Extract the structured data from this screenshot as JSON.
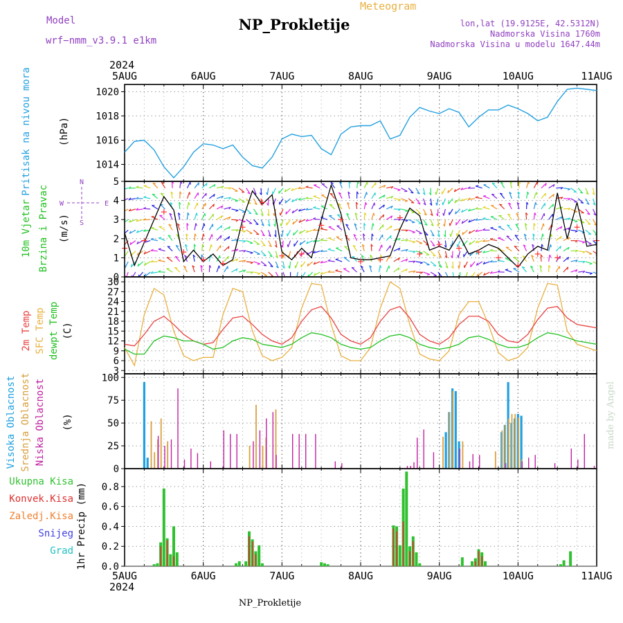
{
  "header": {
    "model_label": "Model",
    "model_name": "wrf−nmm_v3.9.1  e1km",
    "title": "NP_Prokletije",
    "product": "Meteogram",
    "lonlat": "lon,lat (19.9125E, 42.5312N)",
    "altitude": "Nadmorska Visina 1760m",
    "model_altitude": "Nadmorska Visina u modelu 1647.44m",
    "year_top": "2024",
    "year_bottom": "2024",
    "footer": "NP_Prokletije",
    "credit": "made by Angel"
  },
  "colors": {
    "pressure": "#22a0e0",
    "temp2m": "#e84040",
    "sfc": "#e8b040",
    "dew": "#20c020",
    "high_cloud": "#20a0e0",
    "mid_cloud": "#d8a040",
    "low_cloud": "#c020a0",
    "total_precip": "#30c030",
    "conv_precip": "#e03030",
    "frozen_precip": "#f08030",
    "snow": "#4040e0",
    "hail": "#20c0c0",
    "gust": "#ff3030",
    "label_violet": "#9040c0",
    "credit_grey": "#c8d8c8"
  },
  "chart_data": [
    {
      "id": "pressure",
      "type": "line",
      "ylabel": "Pritisak na nivou mora",
      "units": "(hPa)",
      "ylim": [
        1012.6,
        1020.6
      ],
      "yticks": [
        1014,
        1016,
        1018,
        1020
      ],
      "x_day_labels": [
        "5AUG",
        "6AUG",
        "7AUG",
        "8AUG",
        "9AUG",
        "10AUG",
        "11AUG"
      ],
      "x_start": "2024-08-05 00:00",
      "x_end": "2024-08-11 00:00",
      "grid": true,
      "series": [
        {
          "name": "Pritisak na nivou mora",
          "x_hours": [
            0,
            3,
            6,
            9,
            12,
            15,
            18,
            21,
            24,
            27,
            30,
            33,
            36,
            39,
            42,
            45,
            48,
            51,
            54,
            57,
            60,
            63,
            66,
            69,
            72,
            75,
            78,
            81,
            84,
            87,
            90,
            93,
            96,
            99,
            102,
            105,
            108,
            111,
            114,
            117,
            120,
            123,
            126,
            129,
            132,
            135,
            138,
            141,
            144
          ],
          "values": [
            1015.0,
            1015.9,
            1016.0,
            1015.2,
            1013.8,
            1012.9,
            1013.8,
            1015.0,
            1015.7,
            1015.6,
            1015.3,
            1015.6,
            1014.6,
            1013.9,
            1013.7,
            1014.6,
            1016.1,
            1016.5,
            1016.3,
            1016.4,
            1015.3,
            1014.8,
            1016.5,
            1017.1,
            1017.2,
            1017.2,
            1017.6,
            1016.1,
            1016.4,
            1017.9,
            1018.7,
            1018.4,
            1018.2,
            1018.6,
            1018.3,
            1017.1,
            1017.9,
            1018.5,
            1018.5,
            1018.9,
            1018.6,
            1018.2,
            1017.6,
            1017.9,
            1019.2,
            1020.2,
            1020.3,
            1020.2,
            1020.1
          ]
        }
      ]
    },
    {
      "id": "wind",
      "type": "line",
      "ylabel_1": "10m Vjetar",
      "ylabel_2": "Brzina i Pravac",
      "units": "(m/s)",
      "compass": {
        "n": "N",
        "s": "S",
        "w": "W",
        "e": "E"
      },
      "ylim": [
        0,
        5
      ],
      "yticks": [
        0,
        1,
        2,
        3,
        4,
        5
      ],
      "grid": true,
      "series": [
        {
          "name": "speed",
          "x_hours": [
            0,
            3,
            6,
            9,
            12,
            15,
            18,
            21,
            24,
            27,
            30,
            33,
            36,
            39,
            42,
            45,
            48,
            51,
            54,
            57,
            60,
            63,
            66,
            69,
            72,
            75,
            78,
            81,
            84,
            87,
            90,
            93,
            96,
            99,
            102,
            105,
            108,
            111,
            114,
            117,
            120,
            123,
            126,
            129,
            132,
            135,
            138,
            141,
            144
          ],
          "values": [
            2.3,
            0.6,
            1.8,
            3.0,
            4.2,
            3.5,
            0.8,
            1.4,
            0.8,
            1.2,
            0.6,
            0.9,
            3.0,
            4.5,
            3.8,
            4.3,
            1.3,
            0.9,
            1.5,
            1.0,
            3.0,
            4.8,
            3.3,
            1.0,
            0.9,
            0.9,
            1.0,
            1.1,
            2.5,
            3.6,
            3.2,
            1.4,
            1.6,
            1.4,
            2.2,
            1.2,
            1.4,
            1.7,
            1.5,
            1.0,
            0.5,
            1.2,
            1.6,
            1.4,
            4.4,
            2.0,
            3.9,
            1.6,
            1.7
          ]
        },
        {
          "name": "gust",
          "x_hours": [
            0,
            6,
            12,
            18,
            24,
            30,
            36,
            42,
            48,
            54,
            60,
            66,
            72,
            78,
            84,
            90,
            96,
            102,
            108,
            114,
            120,
            126,
            132,
            138,
            144
          ],
          "values": [
            1.5,
            1.9,
            3.4,
            1.3,
            0.9,
            0.7,
            2.6,
            3.9,
            1.1,
            1.2,
            2.7,
            3.0,
            0.8,
            0.9,
            3.1,
            1.2,
            1.7,
            1.5,
            1.3,
            1.0,
            0.6,
            1.2,
            1.0,
            2.6,
            1.9
          ]
        }
      ],
      "direction_deg": [
        200,
        220,
        260,
        300,
        330,
        350,
        20,
        60,
        90,
        120,
        150,
        180,
        210,
        240,
        270,
        300,
        330,
        10,
        50,
        80,
        110,
        140,
        170,
        200,
        230,
        260,
        290,
        320,
        350,
        30,
        70,
        100
      ]
    },
    {
      "id": "temperature",
      "type": "line",
      "ylabel_1": "2m Temp",
      "ylabel_2": "SFC Temp",
      "ylabel_3": "dewpt Temp",
      "units": "(C)",
      "ylim": [
        2,
        31.5
      ],
      "yticks": [
        3,
        6,
        9,
        12,
        15,
        18,
        21,
        24,
        27,
        30
      ],
      "grid": true,
      "series": [
        {
          "name": "2m Temp",
          "x_hours": [
            0,
            3,
            6,
            9,
            12,
            15,
            18,
            21,
            24,
            27,
            30,
            33,
            36,
            39,
            42,
            45,
            48,
            51,
            54,
            57,
            60,
            63,
            66,
            69,
            72,
            75,
            78,
            81,
            84,
            87,
            90,
            93,
            96,
            99,
            102,
            105,
            108,
            111,
            114,
            117,
            120,
            123,
            126,
            129,
            132,
            135,
            138,
            141,
            144
          ],
          "values": [
            11,
            10.5,
            14,
            18,
            19.5,
            17,
            14,
            12,
            11,
            11.5,
            15.5,
            19,
            19.5,
            17,
            14,
            12,
            11,
            13,
            18,
            21.5,
            22.5,
            19,
            14,
            12,
            11,
            13,
            18,
            21.5,
            22.5,
            19,
            14,
            12,
            11,
            13,
            17,
            19.5,
            19.5,
            18,
            14,
            12,
            11.5,
            14,
            18.5,
            22,
            22.5,
            19,
            17,
            16.5,
            16
          ]
        },
        {
          "name": "SFC Temp",
          "x_hours": [
            0,
            3,
            6,
            9,
            12,
            15,
            18,
            21,
            24,
            27,
            30,
            33,
            36,
            39,
            42,
            45,
            48,
            51,
            54,
            57,
            60,
            63,
            66,
            69,
            72,
            75,
            78,
            81,
            84,
            87,
            90,
            93,
            96,
            99,
            102,
            105,
            108,
            111,
            114,
            117,
            120,
            123,
            126,
            129,
            132,
            135,
            138,
            141,
            144
          ],
          "values": [
            10,
            4.5,
            20,
            28,
            26,
            15,
            7.5,
            6,
            7,
            7,
            20,
            28,
            27,
            15,
            7.5,
            6,
            7,
            10,
            22,
            29.5,
            29,
            17,
            7.5,
            6,
            6,
            10,
            22,
            30,
            28,
            17,
            8,
            6.5,
            6,
            9,
            20,
            24,
            24,
            17,
            8.5,
            6,
            7,
            10,
            22,
            29.5,
            29,
            15,
            11,
            10,
            9
          ]
        },
        {
          "name": "dewpt Temp",
          "x_hours": [
            0,
            3,
            6,
            9,
            12,
            15,
            18,
            21,
            24,
            27,
            30,
            33,
            36,
            39,
            42,
            45,
            48,
            51,
            54,
            57,
            60,
            63,
            66,
            69,
            72,
            75,
            78,
            81,
            84,
            87,
            90,
            93,
            96,
            99,
            102,
            105,
            108,
            111,
            114,
            117,
            120,
            123,
            126,
            129,
            132,
            135,
            138,
            141,
            144
          ],
          "values": [
            9.5,
            8,
            8,
            12,
            13.5,
            13,
            12,
            12,
            11,
            9.5,
            10,
            12,
            13,
            12.5,
            11,
            10.5,
            10,
            11,
            13,
            14.5,
            14,
            13,
            11,
            10,
            9.5,
            10,
            12,
            13.5,
            14,
            13,
            11,
            10,
            9.5,
            10,
            11,
            13,
            13.5,
            12.5,
            11,
            10,
            10,
            11,
            13,
            14.5,
            14,
            13,
            12,
            11.5,
            11
          ]
        }
      ]
    },
    {
      "id": "clouds",
      "type": "bar",
      "ylabel_1": "Visoka Oblacnost",
      "ylabel_2": "Srednja Oblacnost",
      "ylabel_3": "Niska Oblacnost",
      "units": "(%)",
      "ylim": [
        0,
        104
      ],
      "yticks": [
        0,
        25,
        50,
        75,
        100
      ],
      "grid": true,
      "series": [
        {
          "name": "Visoka Oblacnost",
          "x_hours": [
            6,
            7,
            98,
            99,
            100,
            101,
            102,
            104,
            105,
            115,
            116,
            117,
            118,
            119,
            120,
            121,
            122
          ],
          "values": [
            95,
            12,
            40,
            62,
            88,
            85,
            30,
            0,
            0,
            40,
            48,
            95,
            50,
            55,
            60,
            58,
            0
          ]
        },
        {
          "name": "Srednja Oblacnost",
          "x_hours": [
            8,
            9,
            10,
            11,
            13,
            38,
            40,
            42,
            43,
            46,
            97,
            99,
            100,
            103,
            113,
            115,
            116,
            117,
            118,
            119,
            120,
            121
          ],
          "values": [
            52,
            18,
            32,
            55,
            30,
            25,
            70,
            25,
            34,
            65,
            35,
            62,
            85,
            30,
            19,
            42,
            48,
            55,
            60,
            60,
            56,
            10
          ]
        },
        {
          "name": "Niska Oblacnost",
          "x_hours": [
            10,
            12,
            14,
            16,
            18,
            20,
            22,
            26,
            30,
            32,
            34,
            39,
            41,
            43,
            45,
            46,
            51,
            53,
            55,
            58,
            64,
            66,
            86,
            87,
            88,
            89,
            91,
            94,
            102,
            105,
            106,
            108,
            116,
            121,
            123,
            125,
            131,
            136,
            138,
            140,
            143
          ],
          "values": [
            36,
            25,
            32,
            88,
            10,
            22,
            17,
            8,
            42,
            38,
            38,
            30,
            42,
            55,
            62,
            15,
            38,
            38,
            38,
            38,
            8,
            6,
            3,
            3,
            7,
            34,
            43,
            18,
            22,
            8,
            16,
            15,
            6,
            8,
            12,
            15,
            6,
            22,
            10,
            38,
            3
          ]
        }
      ]
    },
    {
      "id": "precip",
      "type": "bar",
      "ylabel": "1hr Precip (mm)",
      "legend": [
        "Ukupna Kisa",
        "Konvek.Kisa",
        "Zaledj.Kisa",
        "Snijeg",
        "Grad"
      ],
      "ylim": [
        0,
        0.98
      ],
      "yticks": [
        0,
        0.2,
        0.4,
        0.6,
        0.8
      ],
      "grid": true,
      "series": [
        {
          "name": "Ukupna Kisa",
          "x_hours": [
            9,
            10,
            11,
            12,
            13,
            14,
            15,
            16,
            34,
            35,
            37,
            38,
            39,
            40,
            41,
            42,
            60,
            61,
            62,
            82,
            83,
            84,
            85,
            86,
            87,
            88,
            89,
            90,
            103,
            106,
            107,
            108,
            109,
            110,
            133,
            134,
            136
          ],
          "values": [
            0.02,
            0.03,
            0.24,
            0.78,
            0.28,
            0.12,
            0.4,
            0.14,
            0.03,
            0.05,
            0.05,
            0.35,
            0.27,
            0.15,
            0.21,
            0.03,
            0.04,
            0.03,
            0.02,
            0.41,
            0.4,
            0.21,
            0.78,
            0.95,
            0.2,
            0.3,
            0.14,
            0.03,
            0.09,
            0.05,
            0.08,
            0.17,
            0.14,
            0.05,
            0.02,
            0.06,
            0.15
          ]
        },
        {
          "name": "Konvek.Kisa",
          "x_hours": [
            11,
            13,
            15,
            38,
            39,
            40,
            82,
            83,
            85,
            87,
            88,
            107,
            108,
            109
          ],
          "values": [
            0.2,
            0.26,
            0.1,
            0.3,
            0.25,
            0.12,
            0.38,
            0.35,
            0.45,
            0.15,
            0.25,
            0.05,
            0.15,
            0.1
          ]
        }
      ]
    }
  ]
}
